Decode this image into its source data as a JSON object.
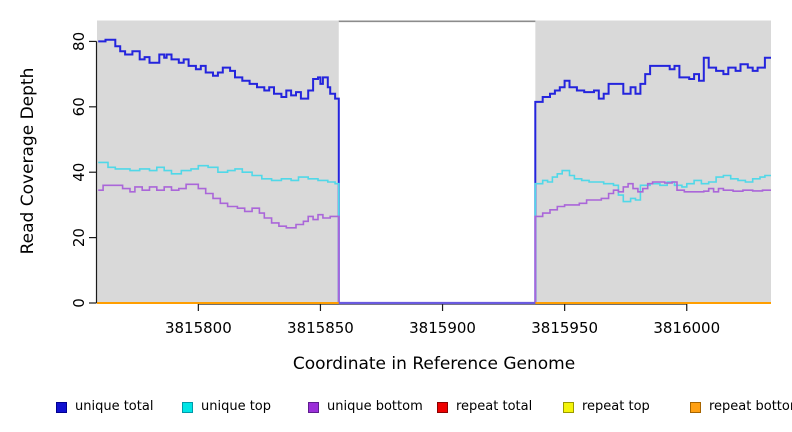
{
  "chart_data": {
    "type": "line",
    "step": true,
    "title": "",
    "xlabel": "Coordinate in Reference Genome",
    "ylabel": "Read Coverage Depth",
    "xlim": [
      3815758.5,
      3816034.5
    ],
    "ylim": [
      0,
      86.4
    ],
    "grid": false,
    "legend_position": "bottom",
    "plot_bg": "#d9d9d9",
    "axis_color": "#1a1a1a",
    "x_ticks": [
      {
        "v": 3815800,
        "label": "3815800"
      },
      {
        "v": 3815850,
        "label": "3815850"
      },
      {
        "v": 3815900,
        "label": "3815900"
      },
      {
        "v": 3815950,
        "label": "3815950"
      },
      {
        "v": 3816000,
        "label": "3816000"
      }
    ],
    "y_ticks": [
      {
        "v": 0,
        "label": "0"
      },
      {
        "v": 20,
        "label": "20"
      },
      {
        "v": 40,
        "label": "40"
      },
      {
        "v": 60,
        "label": "60"
      },
      {
        "v": 80,
        "label": "80"
      }
    ],
    "masked_gap": {
      "x_start": 3815857.5,
      "x_end": 3815938,
      "fill": "#ffffff",
      "top_border": "#8c8c8c",
      "floor_color": "#6a5ae0"
    },
    "series": [
      {
        "name": "unique total",
        "color": "#2424dd",
        "legend_fill": "#1111d0",
        "legend_border": "#000090",
        "width": 2,
        "in_gap": true,
        "left_points": [
          [
            3815759,
            80
          ],
          [
            3815762,
            80.5
          ],
          [
            3815766,
            78.5
          ],
          [
            3815768,
            77
          ],
          [
            3815770,
            76
          ],
          [
            3815773,
            77
          ],
          [
            3815776,
            74.5
          ],
          [
            3815778,
            75.2
          ],
          [
            3815780,
            73.5
          ],
          [
            3815784,
            76
          ],
          [
            3815786,
            75
          ],
          [
            3815787,
            76
          ],
          [
            3815789,
            74.5
          ],
          [
            3815792,
            73.5
          ],
          [
            3815794,
            74.5
          ],
          [
            3815796,
            72.5
          ],
          [
            3815799,
            71.5
          ],
          [
            3815801,
            72.5
          ],
          [
            3815803,
            70.5
          ],
          [
            3815806,
            69.5
          ],
          [
            3815808,
            70.5
          ],
          [
            3815810,
            72
          ],
          [
            3815813,
            71
          ],
          [
            3815815,
            69
          ],
          [
            3815818,
            68
          ],
          [
            3815821,
            67
          ],
          [
            3815824,
            66
          ],
          [
            3815827,
            65
          ],
          [
            3815829,
            66
          ],
          [
            3815831,
            64
          ],
          [
            3815834,
            63
          ],
          [
            3815836,
            65
          ],
          [
            3815838,
            63.5
          ],
          [
            3815840,
            64.5
          ],
          [
            3815842,
            62.5
          ],
          [
            3815845,
            65
          ],
          [
            3815847,
            68.5
          ],
          [
            3815849,
            69
          ],
          [
            3815850,
            67
          ],
          [
            3815851,
            69
          ],
          [
            3815853,
            66
          ],
          [
            3815854,
            64
          ],
          [
            3815856,
            62.5
          ]
        ],
        "right_points": [
          [
            3815938,
            61.5
          ],
          [
            3815941,
            63
          ],
          [
            3815944,
            64
          ],
          [
            3815946,
            65
          ],
          [
            3815948,
            66
          ],
          [
            3815950,
            68
          ],
          [
            3815952,
            66
          ],
          [
            3815955,
            65
          ],
          [
            3815958,
            64.5
          ],
          [
            3815962,
            65
          ],
          [
            3815964,
            62.5
          ],
          [
            3815966,
            64
          ],
          [
            3815968,
            67
          ],
          [
            3815974,
            64
          ],
          [
            3815977,
            66
          ],
          [
            3815979,
            64
          ],
          [
            3815981,
            67
          ],
          [
            3815983,
            70
          ],
          [
            3815985,
            72.5
          ],
          [
            3815993,
            71.5
          ],
          [
            3815995,
            72.5
          ],
          [
            3815997,
            69
          ],
          [
            3816001,
            68.5
          ],
          [
            3816003,
            70
          ],
          [
            3816005,
            68
          ],
          [
            3816007,
            75
          ],
          [
            3816009,
            72
          ],
          [
            3816012,
            71
          ],
          [
            3816015,
            70
          ],
          [
            3816017,
            72
          ],
          [
            3816020,
            71
          ],
          [
            3816022,
            73
          ],
          [
            3816025,
            72
          ],
          [
            3816027,
            71
          ],
          [
            3816029,
            72
          ],
          [
            3816032,
            75
          ]
        ]
      },
      {
        "name": "unique top",
        "color": "#50d8e8",
        "legend_fill": "#00e5e5",
        "legend_border": "#0099aa",
        "width": 1.6,
        "in_gap": true,
        "left_points": [
          [
            3815759,
            43
          ],
          [
            3815763,
            41.5
          ],
          [
            3815766,
            41
          ],
          [
            3815772,
            40.5
          ],
          [
            3815776,
            41
          ],
          [
            3815780,
            40.5
          ],
          [
            3815783,
            41.5
          ],
          [
            3815786,
            40.5
          ],
          [
            3815789,
            39.5
          ],
          [
            3815793,
            40.5
          ],
          [
            3815797,
            41
          ],
          [
            3815800,
            42
          ],
          [
            3815804,
            41.5
          ],
          [
            3815808,
            40
          ],
          [
            3815812,
            40.5
          ],
          [
            3815815,
            41
          ],
          [
            3815818,
            40
          ],
          [
            3815822,
            39
          ],
          [
            3815826,
            38
          ],
          [
            3815830,
            37.5
          ],
          [
            3815834,
            38
          ],
          [
            3815838,
            37.5
          ],
          [
            3815841,
            38.5
          ],
          [
            3815845,
            38
          ],
          [
            3815849,
            37.5
          ],
          [
            3815853,
            37
          ],
          [
            3815856,
            36.5
          ]
        ],
        "right_points": [
          [
            3815938,
            36.5
          ],
          [
            3815941,
            37.5
          ],
          [
            3815943,
            37
          ],
          [
            3815945,
            38.5
          ],
          [
            3815947,
            39.5
          ],
          [
            3815949,
            40.5
          ],
          [
            3815952,
            39
          ],
          [
            3815954,
            38
          ],
          [
            3815957,
            37.5
          ],
          [
            3815960,
            37
          ],
          [
            3815966,
            36.5
          ],
          [
            3815970,
            36
          ],
          [
            3815972,
            33
          ],
          [
            3815974,
            31
          ],
          [
            3815977,
            32
          ],
          [
            3815979,
            31.5
          ],
          [
            3815981,
            36
          ],
          [
            3815985,
            36.5
          ],
          [
            3815989,
            36
          ],
          [
            3815992,
            37
          ],
          [
            3815995,
            36
          ],
          [
            3815998,
            35.5
          ],
          [
            3816000,
            36.5
          ],
          [
            3816003,
            37.5
          ],
          [
            3816006,
            36.5
          ],
          [
            3816009,
            37
          ],
          [
            3816012,
            38.5
          ],
          [
            3816015,
            39
          ],
          [
            3816018,
            38
          ],
          [
            3816021,
            37.5
          ],
          [
            3816024,
            37
          ],
          [
            3816027,
            38
          ],
          [
            3816030,
            38.5
          ],
          [
            3816032,
            39
          ]
        ]
      },
      {
        "name": "unique bottom",
        "color": "#aa66d9",
        "legend_fill": "#9b2fd9",
        "legend_border": "#5e1d8f",
        "width": 1.6,
        "in_gap": true,
        "left_points": [
          [
            3815759,
            34.5
          ],
          [
            3815761,
            36
          ],
          [
            3815769,
            35
          ],
          [
            3815772,
            34
          ],
          [
            3815774,
            35.5
          ],
          [
            3815777,
            34.5
          ],
          [
            3815780,
            35.5
          ],
          [
            3815783,
            34.5
          ],
          [
            3815786,
            35.5
          ],
          [
            3815789,
            34.5
          ],
          [
            3815792,
            35
          ],
          [
            3815795,
            36.3
          ],
          [
            3815800,
            35
          ],
          [
            3815803,
            33.5
          ],
          [
            3815806,
            32
          ],
          [
            3815809,
            30.5
          ],
          [
            3815812,
            29.5
          ],
          [
            3815816,
            29
          ],
          [
            3815819,
            28
          ],
          [
            3815822,
            29
          ],
          [
            3815825,
            27.5
          ],
          [
            3815827,
            26
          ],
          [
            3815830,
            24.5
          ],
          [
            3815833,
            23.5
          ],
          [
            3815836,
            23
          ],
          [
            3815840,
            24
          ],
          [
            3815843,
            25
          ],
          [
            3815845,
            26.5
          ],
          [
            3815847,
            25.5
          ],
          [
            3815849,
            27
          ],
          [
            3815851,
            26
          ],
          [
            3815854,
            26.5
          ]
        ],
        "right_points": [
          [
            3815938,
            26.5
          ],
          [
            3815941,
            27.5
          ],
          [
            3815944,
            28.5
          ],
          [
            3815947,
            29.5
          ],
          [
            3815950,
            30
          ],
          [
            3815956,
            30.5
          ],
          [
            3815959,
            31.5
          ],
          [
            3815965,
            32
          ],
          [
            3815968,
            33.5
          ],
          [
            3815970,
            34.5
          ],
          [
            3815972,
            34
          ],
          [
            3815974,
            35.5
          ],
          [
            3815976,
            36.5
          ],
          [
            3815978,
            35
          ],
          [
            3815980,
            34
          ],
          [
            3815982,
            35
          ],
          [
            3815984,
            36.5
          ],
          [
            3815986,
            37
          ],
          [
            3815991,
            36.7
          ],
          [
            3815994,
            37
          ],
          [
            3815996,
            34.5
          ],
          [
            3815999,
            34
          ],
          [
            3816007,
            34.2
          ],
          [
            3816009,
            35
          ],
          [
            3816011,
            34
          ],
          [
            3816013,
            35
          ],
          [
            3816015,
            34.5
          ],
          [
            3816019,
            34.2
          ],
          [
            3816023,
            34.5
          ],
          [
            3816027,
            34.3
          ],
          [
            3816031,
            34.5
          ]
        ]
      },
      {
        "name": "repeat total",
        "color": "#dd0000",
        "legend_fill": "#ee0000",
        "legend_border": "#8b0000",
        "width": 2,
        "in_gap": false,
        "left_points": [
          [
            3815758.5,
            0
          ]
        ],
        "right_points": [
          [
            3815938,
            0
          ]
        ]
      },
      {
        "name": "repeat top",
        "color": "#f0f000",
        "legend_fill": "#f4f40a",
        "legend_border": "#9a9a00",
        "width": 2,
        "in_gap": false,
        "left_points": [
          [
            3815758.5,
            0
          ]
        ],
        "right_points": [
          [
            3815938,
            0
          ]
        ]
      },
      {
        "name": "repeat bottom",
        "color": "#ff9e00",
        "legend_fill": "#ffa013",
        "legend_border": "#a66400",
        "width": 2,
        "in_gap": false,
        "left_points": [
          [
            3815758.5,
            0
          ]
        ],
        "right_points": [
          [
            3815938,
            0
          ]
        ]
      }
    ]
  }
}
